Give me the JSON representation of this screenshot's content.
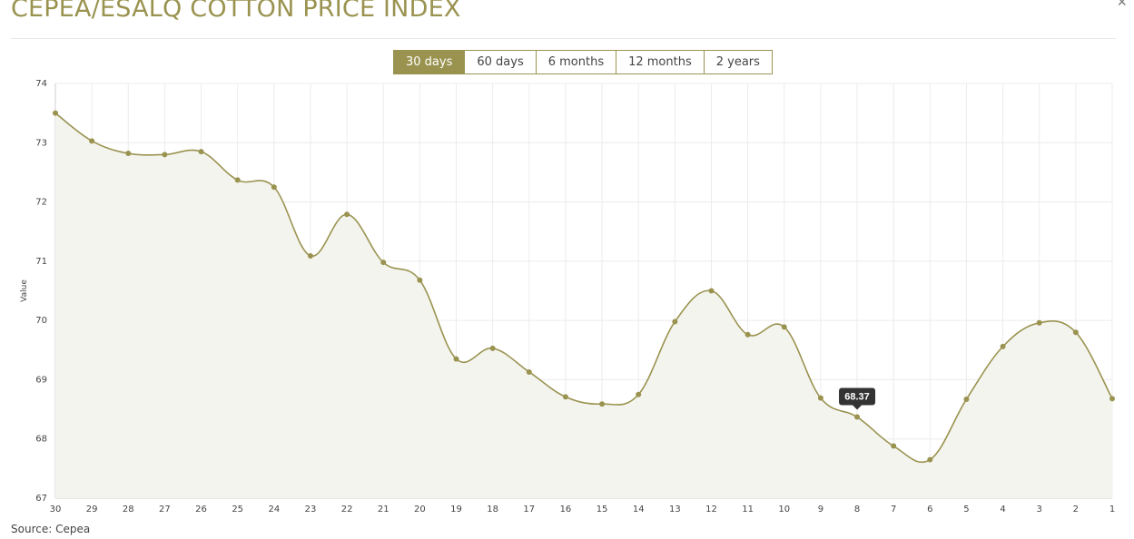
{
  "page": {
    "title": "CEPEA/ESALQ COTTON PRICE INDEX",
    "close_glyph": "×",
    "source": "Source: Cepea"
  },
  "tabs": [
    {
      "label": "30 days",
      "active": true
    },
    {
      "label": "60 days",
      "active": false
    },
    {
      "label": "6 months",
      "active": false
    },
    {
      "label": "12 months",
      "active": false
    },
    {
      "label": "2 years",
      "active": false
    }
  ],
  "colors": {
    "accent": "#9a9350",
    "area": "#f4f4ef",
    "grid": "#ececec",
    "tooltip_bg": "#333333"
  },
  "chart_data": {
    "type": "area",
    "ylabel": "Value",
    "xlabel": "",
    "ylim": [
      67,
      74
    ],
    "yticks": [
      67,
      68,
      69,
      70,
      71,
      72,
      73,
      74
    ],
    "grid": true,
    "categories": [
      "30",
      "29",
      "28",
      "27",
      "26",
      "25",
      "24",
      "23",
      "22",
      "21",
      "20",
      "19",
      "18",
      "17",
      "16",
      "15",
      "14",
      "13",
      "12",
      "11",
      "10",
      "9",
      "8",
      "7",
      "6",
      "5",
      "4",
      "3",
      "2",
      "1"
    ],
    "values": [
      73.5,
      73.03,
      72.82,
      72.8,
      72.85,
      72.37,
      72.25,
      71.09,
      71.79,
      70.98,
      70.68,
      69.35,
      69.53,
      69.13,
      68.71,
      68.59,
      68.75,
      69.98,
      70.5,
      69.76,
      69.89,
      68.69,
      68.37,
      67.88,
      67.65,
      68.67,
      69.56,
      69.96,
      69.8,
      68.68
    ],
    "tooltip": {
      "category": "8",
      "text": "68.37"
    }
  }
}
